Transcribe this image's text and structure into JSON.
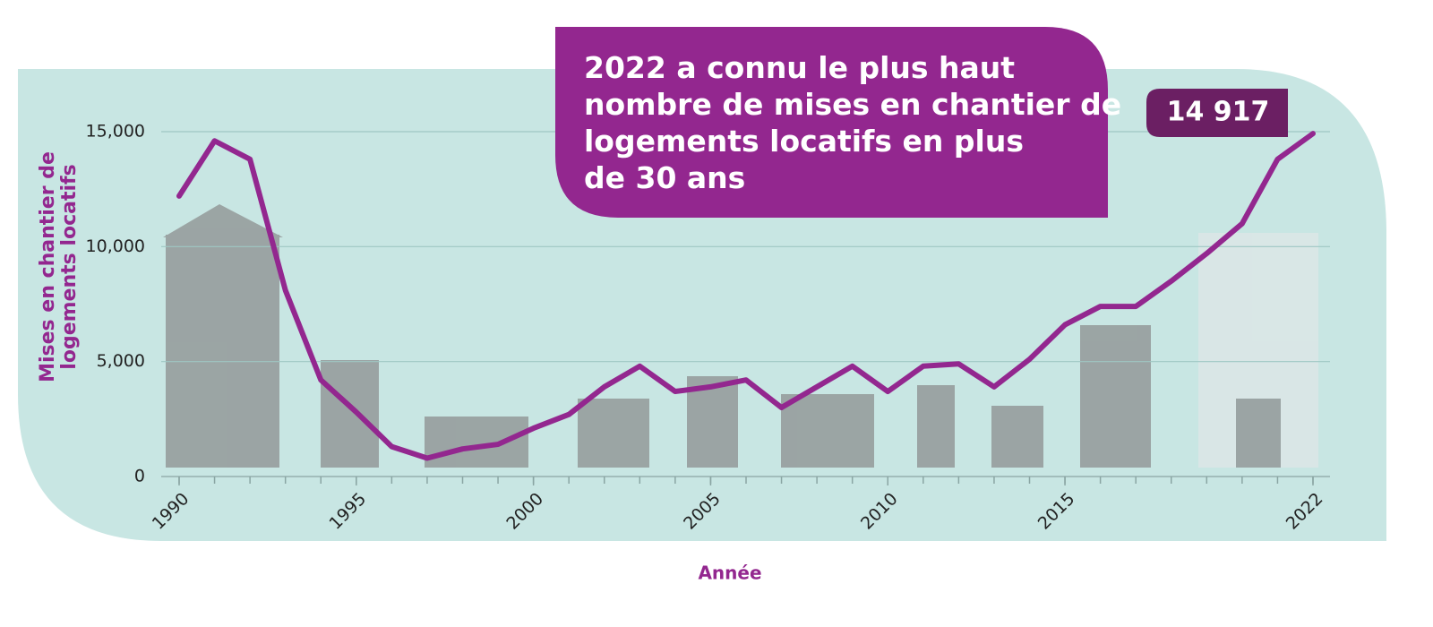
{
  "chart_data": {
    "type": "line",
    "title": [
      "2022 a connu le plus haut",
      "nombre de mises en chantier de",
      "logements locatifs en plus",
      "de 30 ans"
    ],
    "xlabel": "Année",
    "ylabel": [
      "Mises en chantier de",
      "logements locatifs"
    ],
    "x": [
      1990,
      1991,
      1992,
      1993,
      1994,
      1995,
      1996,
      1997,
      1998,
      1999,
      2000,
      2001,
      2002,
      2003,
      2004,
      2005,
      2006,
      2007,
      2008,
      2009,
      2010,
      2011,
      2012,
      2013,
      2014,
      2015,
      2016,
      2017,
      2018,
      2019,
      2020,
      2021,
      2022
    ],
    "series": [
      {
        "color": "#93278f",
        "values": [
          12200,
          14600,
          13800,
          8100,
          4200,
          2800,
          1300,
          800,
          1200,
          1400,
          2100,
          2700,
          3900,
          4800,
          3700,
          3900,
          4200,
          3000,
          3900,
          4800,
          3700,
          4800,
          4900,
          3900,
          5100,
          6600,
          7400,
          7400,
          8500,
          9700,
          11000,
          13800,
          14917
        ],
        "value_labels": [
          null,
          null,
          null,
          null,
          null,
          null,
          null,
          null,
          null,
          null,
          null,
          null,
          null,
          null,
          null,
          null,
          null,
          null,
          null,
          null,
          null,
          null,
          null,
          null,
          null,
          null,
          null,
          null,
          null,
          null,
          null,
          null,
          "14 917"
        ]
      }
    ],
    "xlim": [
      1990,
      2022
    ],
    "xticks": [
      1990,
      1995,
      2000,
      2005,
      2010,
      2015,
      2022
    ],
    "ylim": [
      0,
      15000
    ],
    "yticks": [
      0,
      {
        "value": 5000,
        "label": "5,000"
      },
      {
        "value": 10000,
        "label": "10,000"
      },
      {
        "value": 15000,
        "label": "15,000"
      }
    ],
    "grid": true
  }
}
